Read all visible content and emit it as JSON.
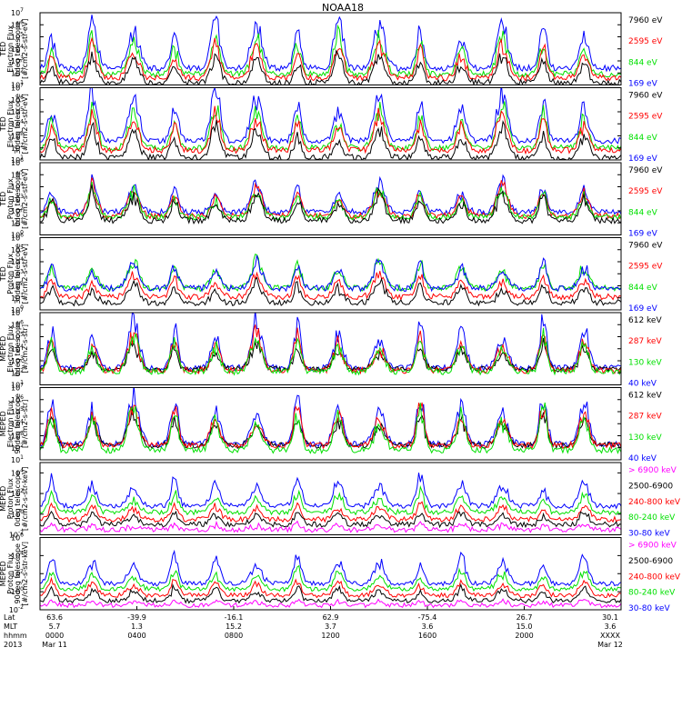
{
  "title": "NOAA18",
  "colors": {
    "black": "#000000",
    "red": "#ff0000",
    "green": "#00e000",
    "blue": "#0000ff",
    "magenta": "#ff00ff"
  },
  "x_axis": {
    "row_labels": [
      "Lat",
      "MLT",
      "hhmm",
      "2013"
    ],
    "ticks": [
      {
        "lat": "63.6",
        "mlt": "5.7",
        "hhmm": "0000",
        "date": "Mar 11"
      },
      {
        "lat": "-39.9",
        "mlt": "1.3",
        "hhmm": "0400",
        "date": ""
      },
      {
        "lat": "-16.1",
        "mlt": "15.2",
        "hhmm": "0800",
        "date": ""
      },
      {
        "lat": "62.9",
        "mlt": "3.7",
        "hhmm": "1200",
        "date": ""
      },
      {
        "lat": "-75.4",
        "mlt": "3.6",
        "hhmm": "1600",
        "date": ""
      },
      {
        "lat": "26.7",
        "mlt": "15.0",
        "hhmm": "2000",
        "date": ""
      },
      {
        "lat": "30.1",
        "mlt": "3.6",
        "hhmm": "XXXX",
        "date": "Mar 12"
      }
    ]
  },
  "chart_data": [
    {
      "type": "line",
      "scale": "log",
      "yexp": [
        1,
        7
      ],
      "ylabel_lines": [
        "TED",
        "Electron Flux",
        "0deg telescope",
        "[#/cm2-s-str-eV]"
      ],
      "series": [
        {
          "name": "7960 eV",
          "color": "#000000",
          "base": 1.2,
          "spike": 2.5
        },
        {
          "name": "2595 eV",
          "color": "#ff0000",
          "base": 1.6,
          "spike": 3.2
        },
        {
          "name": "844 eV",
          "color": "#00e000",
          "base": 1.9,
          "spike": 3.6
        },
        {
          "name": "169 eV",
          "color": "#0000ff",
          "base": 2.4,
          "spike": 4.4
        }
      ]
    },
    {
      "type": "line",
      "scale": "log",
      "yexp": [
        1,
        7
      ],
      "ylabel_lines": [
        "TED",
        "Electron Flux",
        "30deg telescope",
        "[#/cm2-s-str-eV]"
      ],
      "series": [
        {
          "name": "7960 eV",
          "color": "#000000",
          "base": 1.2,
          "spike": 2.6
        },
        {
          "name": "2595 eV",
          "color": "#ff0000",
          "base": 1.8,
          "spike": 3.3
        },
        {
          "name": "844 eV",
          "color": "#00e000",
          "base": 2.0,
          "spike": 3.7
        },
        {
          "name": "169 eV",
          "color": "#0000ff",
          "base": 2.6,
          "spike": 4.5
        }
      ]
    },
    {
      "type": "line",
      "scale": "log",
      "yexp": [
        0,
        6
      ],
      "ylabel_lines": [
        "TED",
        "Proton Flux",
        "0deg telescope",
        "[#/cm2-s-str-eV]"
      ],
      "series": [
        {
          "name": "7960 eV",
          "color": "#000000",
          "base": 1.2,
          "spike": 2.4
        },
        {
          "name": "2595 eV",
          "color": "#ff0000",
          "base": 1.6,
          "spike": 2.6
        },
        {
          "name": "844 eV",
          "color": "#00e000",
          "base": 1.5,
          "spike": 2.4
        },
        {
          "name": "169 eV",
          "color": "#0000ff",
          "base": 1.9,
          "spike": 2.6
        }
      ]
    },
    {
      "type": "line",
      "scale": "log",
      "yexp": [
        0,
        6
      ],
      "ylabel_lines": [
        "TED",
        "Proton Flux",
        "30deg telescope",
        "[#/cm2-s-str-eV]"
      ],
      "series": [
        {
          "name": "7960 eV",
          "color": "#000000",
          "base": 0.6,
          "spike": 1.8
        },
        {
          "name": "2595 eV",
          "color": "#ff0000",
          "base": 1.1,
          "spike": 2.0
        },
        {
          "name": "844 eV",
          "color": "#00e000",
          "base": 1.8,
          "spike": 2.6
        },
        {
          "name": "169 eV",
          "color": "#0000ff",
          "base": 1.8,
          "spike": 2.4
        }
      ]
    },
    {
      "type": "line",
      "scale": "log",
      "yexp": [
        1,
        7
      ],
      "ylabel_lines": [
        "MEPED",
        "Electron Flux",
        "0deg telescope",
        "[#/cm2-s-str]"
      ],
      "series": [
        {
          "name": "612 keV",
          "color": "#000000",
          "base": 2.3,
          "spike": 2.2
        },
        {
          "name": "287 keV",
          "color": "#ff0000",
          "base": 2.2,
          "spike": 3.3
        },
        {
          "name": "130 keV",
          "color": "#00e000",
          "base": 2.1,
          "spike": 3.3
        },
        {
          "name": "40 keV",
          "color": "#0000ff",
          "base": 2.4,
          "spike": 4.2
        }
      ]
    },
    {
      "type": "line",
      "scale": "log",
      "yexp": [
        1,
        7
      ],
      "ylabel_lines": [
        "MEPED",
        "Electron Flux",
        "90deg telescope",
        "[#/cm2-s-str]"
      ],
      "series": [
        {
          "name": "612 keV",
          "color": "#000000",
          "base": 2.2,
          "spike": 2.8
        },
        {
          "name": "287 keV",
          "color": "#ff0000",
          "base": 2.2,
          "spike": 3.4
        },
        {
          "name": "130 keV",
          "color": "#00e000",
          "base": 1.8,
          "spike": 3.6
        },
        {
          "name": "40 keV",
          "color": "#0000ff",
          "base": 2.3,
          "spike": 4.4
        }
      ]
    },
    {
      "type": "line",
      "scale": "log",
      "yexp": [
        -2,
        5
      ],
      "yticks": [
        -2,
        0,
        2,
        4
      ],
      "ylabel_lines": [
        "MEPED",
        "Proton Flux",
        "0deg telescope",
        "[#/cm2-s-str-keV]"
      ],
      "series": [
        {
          "name": "> 6900 keV",
          "color": "#ff00ff",
          "base": -1.5,
          "spike": 0.6
        },
        {
          "name": "2500-6900",
          "color": "#000000",
          "base": -1.0,
          "spike": 1.4
        },
        {
          "name": "240-800 keV",
          "color": "#ff0000",
          "base": -0.5,
          "spike": 1.6
        },
        {
          "name": "80-240 keV",
          "color": "#00e000",
          "base": 0.2,
          "spike": 2.0
        },
        {
          "name": "30-80 keV",
          "color": "#0000ff",
          "base": 0.8,
          "spike": 3.0
        }
      ]
    },
    {
      "type": "line",
      "scale": "log",
      "yexp": [
        -2,
        6
      ],
      "yticks": [
        -2,
        0,
        2,
        4,
        6
      ],
      "ylabel_lines": [
        "MEPED",
        "Proton Flux",
        "90deg telescope",
        "[#/cm2-s-str-keV]"
      ],
      "series": [
        {
          "name": "> 6900 keV",
          "color": "#ff00ff",
          "base": -1.5,
          "spike": 0.6
        },
        {
          "name": "2500-6900",
          "color": "#000000",
          "base": -1.0,
          "spike": 1.6
        },
        {
          "name": "240-800 keV",
          "color": "#ff0000",
          "base": -0.4,
          "spike": 1.8
        },
        {
          "name": "80-240 keV",
          "color": "#00e000",
          "base": 0.3,
          "spike": 2.2
        },
        {
          "name": "30-80 keV",
          "color": "#0000ff",
          "base": 0.9,
          "spike": 3.3
        }
      ]
    }
  ]
}
